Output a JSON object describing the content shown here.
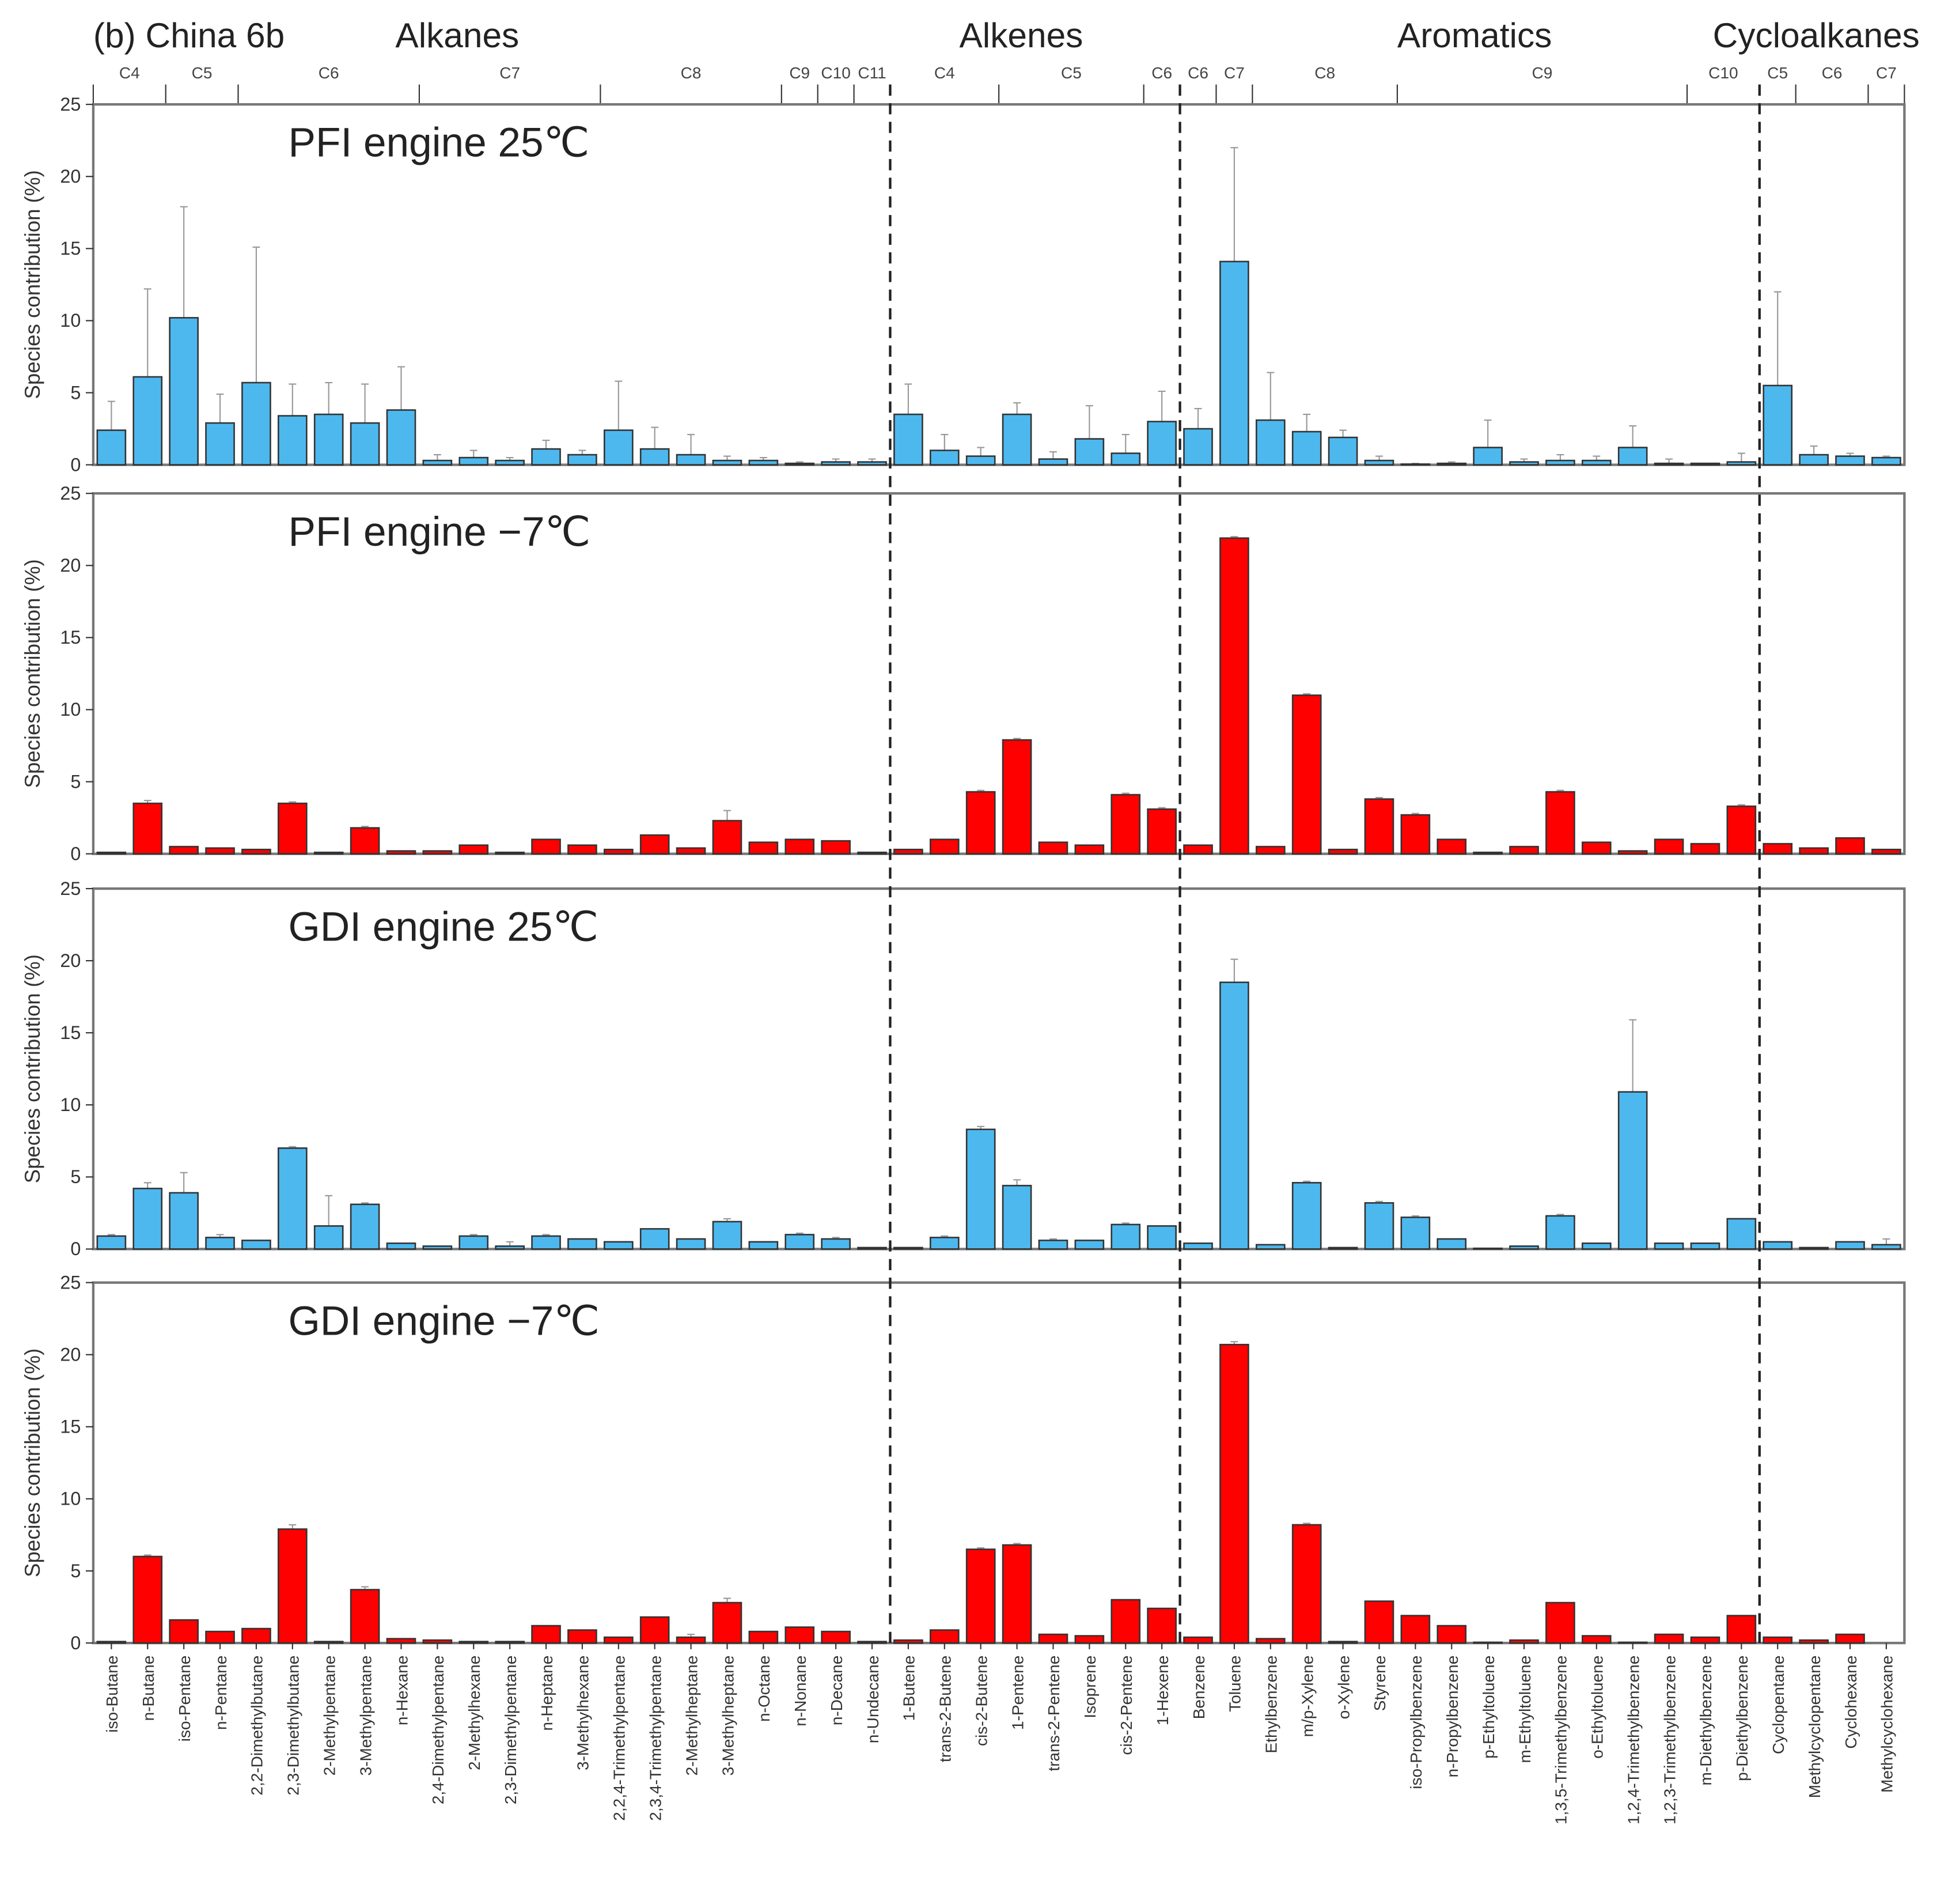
{
  "chart_data": {
    "type": "bar",
    "title": "(b) China 6b",
    "ylabel": "Species contribution (%)",
    "ylim": [
      0,
      25
    ],
    "yticks": [
      0,
      5,
      10,
      15,
      20,
      25
    ],
    "categories": [
      "iso-Butane",
      "n-Butane",
      "iso-Pentane",
      "n-Pentane",
      "2,2-Dimethylbutane",
      "2,3-Dimethylbutane",
      "2-Methylpentane",
      "3-Methylpentane",
      "n-Hexane",
      "2,4-Dimethylpentane",
      "2-Methylhexane",
      "2,3-Dimethylpentane",
      "n-Heptane",
      "3-Methylhexane",
      "2,2,4-Trimethylpentane",
      "2,3,4-Trimethylpentane",
      "2-Methylheptane",
      "3-Methylheptane",
      "n-Octane",
      "n-Nonane",
      "n-Decane",
      "n-Undecane",
      "1-Butene",
      "trans-2-Butene",
      "cis-2-Butene",
      "1-Pentene",
      "trans-2-Pentene",
      "Isoprene",
      "cis-2-Pentene",
      "1-Hexene",
      "Benzene",
      "Toluene",
      "Ethylbenzene",
      "m/p-Xylene",
      "o-Xylene",
      "Styrene",
      "iso-Propylbenzene",
      "n-Propylbenzene",
      "p-Ethyltoluene",
      "m-Ethyltoluene",
      "1,3,5-Trimethylbenzene",
      "o-Ethyltoluene",
      "1,2,4-Trimethylbenzene",
      "1,2,3-Trimethylbenzene",
      "m-Diethylbenzene",
      "p-Diethylbenzene",
      "Cyclopentane",
      "Methylcyclopentane",
      "Cyclohexane",
      "Methylcyclohexane"
    ],
    "classes": [
      {
        "name": "Alkanes",
        "groups": [
          {
            "label": "C4",
            "count": 2
          },
          {
            "label": "C5",
            "count": 2
          },
          {
            "label": "C6",
            "count": 5
          },
          {
            "label": "C7",
            "count": 5
          },
          {
            "label": "C8",
            "count": 5
          },
          {
            "label": "C9",
            "count": 1
          },
          {
            "label": "C10",
            "count": 1
          },
          {
            "label": "C11",
            "count": 1
          }
        ]
      },
      {
        "name": "Alkenes",
        "groups": [
          {
            "label": "C4",
            "count": 3
          },
          {
            "label": "C5",
            "count": 4
          },
          {
            "label": "C6",
            "count": 1
          }
        ]
      },
      {
        "name": "Aromatics",
        "groups": [
          {
            "label": "C6",
            "count": 1
          },
          {
            "label": "C7",
            "count": 1
          },
          {
            "label": "C8",
            "count": 4
          },
          {
            "label": "C9",
            "count": 8
          },
          {
            "label": "C10",
            "count": 2
          }
        ]
      },
      {
        "name": "Cycloalkanes",
        "groups": [
          {
            "label": "C5",
            "count": 1
          },
          {
            "label": "C6",
            "count": 2
          },
          {
            "label": "C7",
            "count": 1
          }
        ]
      }
    ],
    "series": [
      {
        "name": "PFI engine 25℃",
        "color": "#4DB8EE",
        "values": [
          2.4,
          6.1,
          10.2,
          2.9,
          5.7,
          3.4,
          3.5,
          2.9,
          3.8,
          0.3,
          0.5,
          0.3,
          1.1,
          0.7,
          2.4,
          1.1,
          0.7,
          0.3,
          0.3,
          0.1,
          0.2,
          0.2,
          3.5,
          1.0,
          0.6,
          3.5,
          0.4,
          1.8,
          0.8,
          3.0,
          2.5,
          14.1,
          3.1,
          2.3,
          1.9,
          0.3,
          0.05,
          0.1,
          1.2,
          0.2,
          0.3,
          0.3,
          1.2,
          0.1,
          0.1,
          0.2,
          5.5,
          0.7,
          0.6,
          0.5
        ],
        "error_upper": [
          4.4,
          12.2,
          17.9,
          4.9,
          15.1,
          5.6,
          5.7,
          5.6,
          6.8,
          0.7,
          1.0,
          0.5,
          1.7,
          1.0,
          5.8,
          2.6,
          2.1,
          0.6,
          0.5,
          0.2,
          0.4,
          0.4,
          5.6,
          2.1,
          1.2,
          4.3,
          0.9,
          4.1,
          2.1,
          5.1,
          3.9,
          22.0,
          6.4,
          3.5,
          2.4,
          0.6,
          0.1,
          0.2,
          3.1,
          0.4,
          0.7,
          0.6,
          2.7,
          0.4,
          0.1,
          0.8,
          12.0,
          1.3,
          0.8,
          0.6
        ]
      },
      {
        "name": "PFI engine −7℃",
        "color": "#FF0000",
        "values": [
          0.1,
          3.5,
          0.5,
          0.4,
          0.3,
          3.5,
          0.1,
          1.8,
          0.2,
          0.2,
          0.6,
          0.1,
          1.0,
          0.6,
          0.3,
          1.3,
          0.4,
          2.3,
          0.8,
          1.0,
          0.9,
          0.1,
          0.3,
          1.0,
          4.3,
          7.9,
          0.8,
          0.6,
          4.1,
          3.1,
          0.6,
          21.9,
          0.5,
          11.0,
          0.3,
          3.8,
          2.7,
          1.0,
          0.1,
          0.5,
          4.3,
          0.8,
          0.2,
          1.0,
          0.7,
          3.3,
          0.7,
          0.4,
          1.1,
          0.3
        ],
        "error_upper": [
          0.1,
          3.7,
          0.5,
          0.4,
          0.3,
          3.6,
          0.1,
          1.9,
          0.2,
          0.2,
          0.6,
          0.1,
          1.0,
          0.6,
          0.3,
          1.3,
          0.4,
          3.0,
          0.8,
          1.0,
          0.9,
          0.1,
          0.3,
          1.0,
          4.4,
          8.0,
          0.8,
          0.6,
          4.2,
          3.2,
          0.6,
          22.0,
          0.5,
          11.1,
          0.3,
          3.9,
          2.8,
          1.0,
          0.1,
          0.5,
          4.4,
          0.8,
          0.2,
          1.0,
          0.7,
          3.4,
          0.7,
          0.4,
          1.1,
          0.3
        ]
      },
      {
        "name": "GDI engine 25℃",
        "color": "#4DB8EE",
        "values": [
          0.9,
          4.2,
          3.9,
          0.8,
          0.6,
          7.0,
          1.6,
          3.1,
          0.4,
          0.2,
          0.9,
          0.2,
          0.9,
          0.7,
          0.5,
          1.4,
          0.7,
          1.9,
          0.5,
          1.0,
          0.7,
          0.1,
          0.1,
          0.8,
          8.3,
          4.4,
          0.6,
          0.6,
          1.7,
          1.6,
          0.4,
          18.5,
          0.3,
          4.6,
          0.1,
          3.2,
          2.2,
          0.7,
          0.05,
          0.2,
          2.3,
          0.4,
          10.9,
          0.4,
          0.4,
          2.1,
          0.5,
          0.1,
          0.5,
          0.3
        ],
        "error_upper": [
          1.0,
          4.6,
          5.3,
          1.0,
          0.6,
          7.1,
          3.7,
          3.2,
          0.4,
          0.2,
          1.0,
          0.5,
          1.0,
          0.7,
          0.5,
          1.4,
          0.7,
          2.1,
          0.5,
          1.1,
          0.8,
          0.1,
          0.1,
          0.9,
          8.5,
          4.8,
          0.7,
          0.6,
          1.8,
          1.6,
          0.4,
          20.1,
          0.3,
          4.7,
          0.1,
          3.3,
          2.3,
          0.7,
          0.05,
          0.2,
          2.4,
          0.4,
          15.9,
          0.4,
          0.4,
          2.1,
          0.5,
          0.1,
          0.5,
          0.7
        ]
      },
      {
        "name": "GDI engine −7℃",
        "color": "#FF0000",
        "values": [
          0.1,
          6.0,
          1.6,
          0.8,
          1.0,
          7.9,
          0.1,
          3.7,
          0.3,
          0.2,
          0.1,
          0.1,
          1.2,
          0.9,
          0.4,
          1.8,
          0.4,
          2.8,
          0.8,
          1.1,
          0.8,
          0.1,
          0.2,
          0.9,
          6.5,
          6.8,
          0.6,
          0.5,
          3.0,
          2.4,
          0.4,
          20.7,
          0.3,
          8.2,
          0.1,
          2.9,
          1.9,
          1.2,
          0.05,
          0.2,
          2.8,
          0.5,
          0.05,
          0.6,
          0.4,
          1.9,
          0.4,
          0.2,
          0.6,
          0.0
        ],
        "error_upper": [
          0.1,
          6.1,
          1.6,
          0.8,
          1.0,
          8.2,
          0.1,
          3.9,
          0.3,
          0.2,
          0.1,
          0.1,
          1.2,
          0.9,
          0.4,
          1.8,
          0.6,
          3.1,
          0.8,
          1.1,
          0.8,
          0.1,
          0.2,
          0.9,
          6.6,
          6.9,
          0.6,
          0.5,
          3.0,
          2.4,
          0.4,
          20.9,
          0.3,
          8.3,
          0.1,
          2.9,
          1.9,
          1.2,
          0.05,
          0.2,
          2.8,
          0.5,
          0.05,
          0.6,
          0.4,
          1.9,
          0.4,
          0.2,
          0.6,
          0.0
        ]
      }
    ]
  }
}
